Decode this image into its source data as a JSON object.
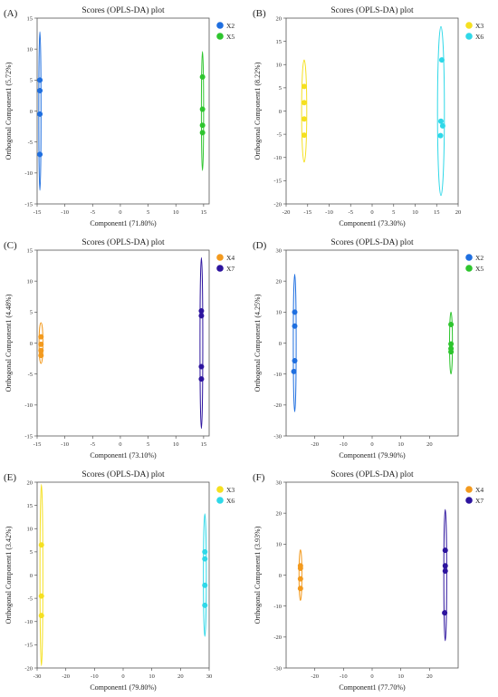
{
  "chart_data": [
    {
      "panel": "(A)",
      "type": "scatter",
      "title": "Scores (OPLS-DA) plot",
      "xlabel": "Component1 (71.80%)",
      "ylabel": "Orthogonal Component1 (5.72%)",
      "xlim": [
        -15,
        16
      ],
      "ylim": [
        -15,
        15
      ],
      "xticks": [
        -15,
        -10,
        -5,
        0,
        5,
        10,
        15
      ],
      "yticks": [
        -15,
        -10,
        -5,
        0,
        5,
        10,
        15
      ],
      "legend_position": "top-right",
      "series": [
        {
          "name": "X2",
          "color": "#1f6fe0",
          "x": [
            -14.5,
            -14.5,
            -14.5,
            -14.5
          ],
          "y": [
            5,
            3.3,
            -0.5,
            -7
          ],
          "ellipse": {
            "cx": -14.5,
            "cy": 0,
            "rx": 0.2,
            "ry": 12.8
          }
        },
        {
          "name": "X5",
          "color": "#2ec52e",
          "x": [
            14.8,
            14.8,
            14.8,
            14.8
          ],
          "y": [
            5.5,
            0.3,
            -2.3,
            -3.5
          ],
          "ellipse": {
            "cx": 14.8,
            "cy": 0,
            "rx": 0.2,
            "ry": 9.6
          }
        }
      ]
    },
    {
      "panel": "(B)",
      "type": "scatter",
      "title": "Scores (OPLS-DA) plot",
      "xlabel": "Component1 (73.30%)",
      "ylabel": "Orthogonal Component1 (8.22%)",
      "xlim": [
        -20,
        20
      ],
      "ylim": [
        -20,
        20
      ],
      "xticks": [
        -20,
        -15,
        -10,
        -5,
        0,
        5,
        10,
        15,
        20
      ],
      "yticks": [
        -20,
        -15,
        -10,
        -5,
        0,
        5,
        10,
        15,
        20
      ],
      "legend_position": "top-right",
      "series": [
        {
          "name": "X3",
          "color": "#f5e020",
          "x": [
            -15.8,
            -15.8,
            -15.8,
            -15.8
          ],
          "y": [
            5.3,
            1.8,
            -1.7,
            -5.2
          ],
          "ellipse": {
            "cx": -15.8,
            "cy": 0,
            "rx": 0.6,
            "ry": 11
          }
        },
        {
          "name": "X6",
          "color": "#2fd8e8",
          "x": [
            16.2,
            16,
            16.4,
            15.9
          ],
          "y": [
            11,
            -2.2,
            -3.2,
            -5.3
          ],
          "ellipse": {
            "cx": 16,
            "cy": 0,
            "rx": 0.8,
            "ry": 18.2
          }
        }
      ]
    },
    {
      "panel": "(C)",
      "type": "scatter",
      "title": "Scores (OPLS-DA) plot",
      "xlabel": "Component1 (73.10%)",
      "ylabel": "Orthogonal Component1 (4.48%)",
      "xlim": [
        -15,
        16
      ],
      "ylim": [
        -15,
        15
      ],
      "xticks": [
        -15,
        -10,
        -5,
        0,
        5,
        10,
        15
      ],
      "yticks": [
        -15,
        -10,
        -5,
        0,
        5,
        10,
        15
      ],
      "legend_position": "top-right",
      "series": [
        {
          "name": "X4",
          "color": "#f39a1e",
          "x": [
            -14.3,
            -14.3,
            -14.3,
            -14.3
          ],
          "y": [
            1,
            -0.2,
            -1.2,
            -2
          ],
          "ellipse": {
            "cx": -14.3,
            "cy": 0,
            "rx": 0.35,
            "ry": 3.3
          }
        },
        {
          "name": "X7",
          "color": "#2d149e",
          "x": [
            14.6,
            14.6,
            14.6,
            14.6
          ],
          "y": [
            5.2,
            4.4,
            -3.8,
            -5.8
          ],
          "ellipse": {
            "cx": 14.6,
            "cy": 0,
            "rx": 0.25,
            "ry": 13.8
          }
        }
      ]
    },
    {
      "panel": "(D)",
      "type": "scatter",
      "title": "Scores (OPLS-DA) plot",
      "xlabel": "Component1 (79.90%)",
      "ylabel": "Orthogonal Component1 (4.25%)",
      "xlim": [
        -30,
        30
      ],
      "ylim": [
        -30,
        30
      ],
      "xticks": [
        -20,
        -10,
        0,
        10,
        20
      ],
      "yticks": [
        -30,
        -20,
        -10,
        0,
        10,
        20,
        30
      ],
      "legend_position": "top-right",
      "series": [
        {
          "name": "X2",
          "color": "#1f6fe0",
          "x": [
            -27,
            -27,
            -27,
            -27.3
          ],
          "y": [
            10,
            5.5,
            -5.7,
            -9.2
          ],
          "ellipse": {
            "cx": -27,
            "cy": 0,
            "rx": 0.5,
            "ry": 22.2
          }
        },
        {
          "name": "X5",
          "color": "#2ec52e",
          "x": [
            27.5,
            27.5,
            27.5,
            27.5
          ],
          "y": [
            6,
            -0.3,
            -1.8,
            -2.8
          ],
          "ellipse": {
            "cx": 27.5,
            "cy": 0,
            "rx": 0.5,
            "ry": 10
          }
        }
      ]
    },
    {
      "panel": "(E)",
      "type": "scatter",
      "title": "Scores (OPLS-DA) plot",
      "xlabel": "Component1 (79.80%)",
      "ylabel": "Orthogonal Component1 (3.42%)",
      "xlim": [
        -30,
        30
      ],
      "ylim": [
        -20,
        20
      ],
      "xticks": [
        -30,
        -20,
        -10,
        0,
        10,
        20,
        30
      ],
      "yticks": [
        -20,
        -15,
        -10,
        -5,
        0,
        5,
        10,
        15,
        20
      ],
      "legend_position": "top-right",
      "series": [
        {
          "name": "X3",
          "color": "#f5e020",
          "x": [
            -28.5,
            -28.5,
            -28.5
          ],
          "y": [
            6.5,
            -4.5,
            -8.7
          ],
          "ellipse": {
            "cx": -28.5,
            "cy": 0,
            "rx": 0.5,
            "ry": 19.5
          }
        },
        {
          "name": "X6",
          "color": "#2fd8e8",
          "x": [
            28.5,
            28.5,
            28.5,
            28.5
          ],
          "y": [
            5,
            3.5,
            -2.2,
            -6.5
          ],
          "ellipse": {
            "cx": 28.5,
            "cy": 0,
            "rx": 0.5,
            "ry": 13.2
          }
        }
      ]
    },
    {
      "panel": "(F)",
      "type": "scatter",
      "title": "Scores (OPLS-DA) plot",
      "xlabel": "Component1 (77.70%)",
      "ylabel": "Orthogonal Component1 (3.93%)",
      "xlim": [
        -30,
        30
      ],
      "ylim": [
        -30,
        30
      ],
      "xticks": [
        -20,
        -10,
        0,
        10,
        20
      ],
      "yticks": [
        -30,
        -20,
        -10,
        0,
        10,
        20,
        30
      ],
      "legend_position": "top-right",
      "series": [
        {
          "name": "X4",
          "color": "#f39a1e",
          "x": [
            -25,
            -25,
            -25,
            -25
          ],
          "y": [
            3,
            2.2,
            -1.2,
            -4.3
          ],
          "ellipse": {
            "cx": -25,
            "cy": 0,
            "rx": 0.5,
            "ry": 8.2
          }
        },
        {
          "name": "X7",
          "color": "#2d149e",
          "x": [
            25.5,
            25.5,
            25.5,
            25.3
          ],
          "y": [
            8,
            3,
            1.3,
            -12.2
          ],
          "ellipse": {
            "cx": 25.5,
            "cy": 0,
            "rx": 0.5,
            "ry": 21.2
          }
        }
      ]
    }
  ]
}
